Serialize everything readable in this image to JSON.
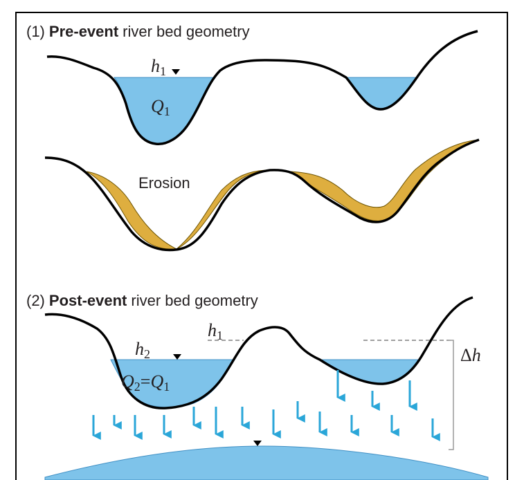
{
  "panel1": {
    "prefix": "(1)",
    "emphasis": "Pre-event",
    "rest": "river bed geometry",
    "h_label": {
      "base": "h",
      "sub": "1"
    },
    "q_label": {
      "base": "Q",
      "sub": "1"
    }
  },
  "erosion": {
    "label": "Erosion"
  },
  "panel2": {
    "prefix": "(2)",
    "emphasis": "Post-event",
    "rest": "river bed geometry",
    "h1_label": {
      "base": "h",
      "sub": "1"
    },
    "h2_label": {
      "base": "h",
      "sub": "2"
    },
    "q_label": {
      "left": {
        "base": "Q",
        "sub": "2"
      },
      "operator": "=",
      "right": {
        "base": "Q",
        "sub": "1"
      }
    },
    "delta_label": {
      "symbol": "Δ",
      "var": "h"
    }
  }
}
